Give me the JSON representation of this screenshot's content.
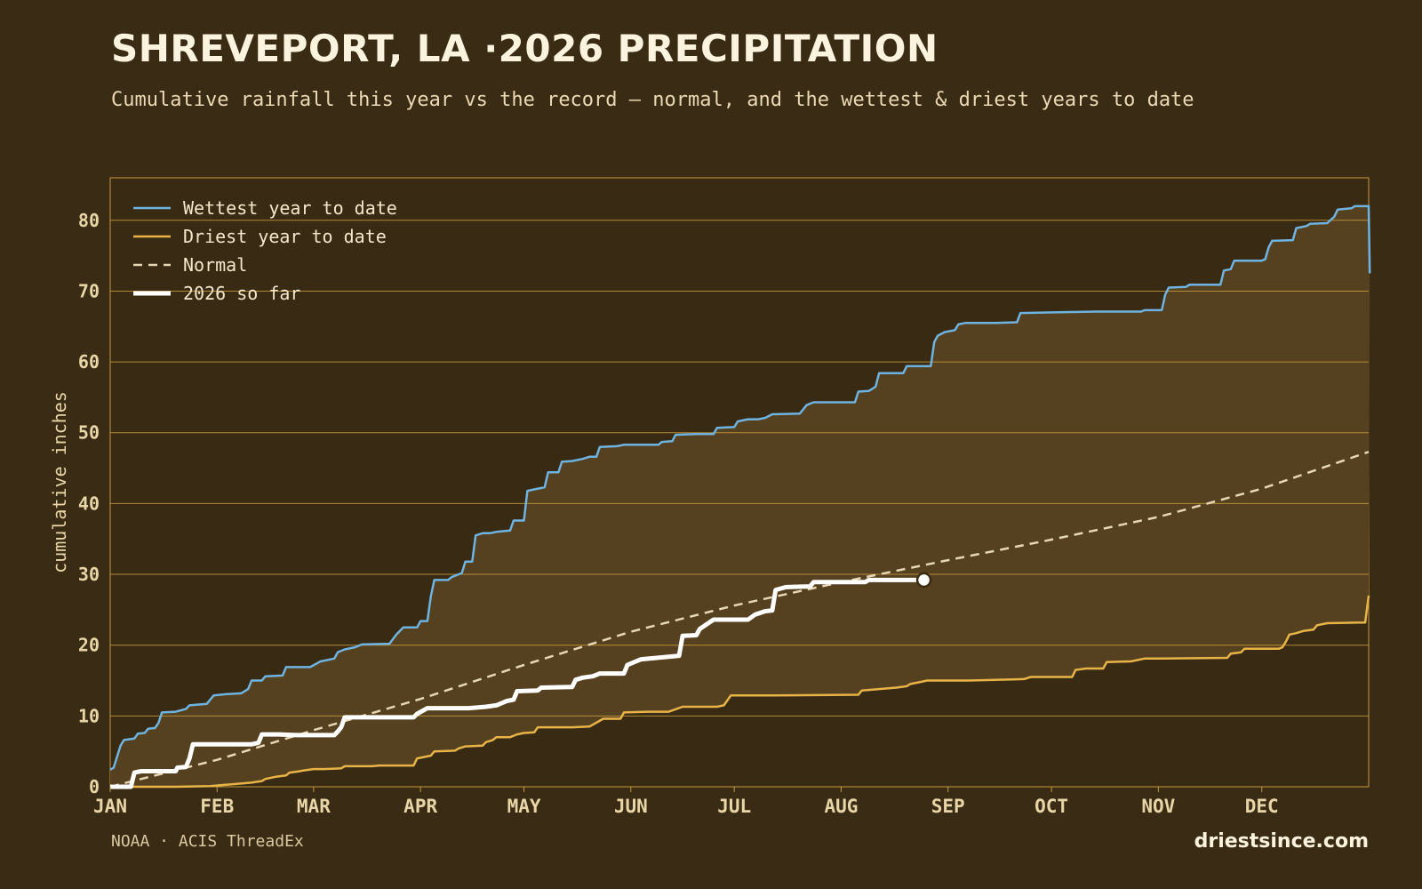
{
  "header": {
    "title": "SHREVEPORT, LA ·2026 PRECIPITATION",
    "subtitle": "Cumulative rainfall this year vs the record — normal, and the wettest & driest years to date"
  },
  "footer": {
    "source": "NOAA · ACIS ThreadEx",
    "brand": "driestsince.com"
  },
  "colors": {
    "background": "#3a2c14",
    "plot_background": "#382a13",
    "band_fill": "#55401f",
    "grid": "#c69a3e",
    "axis_text": "#e8d6a8",
    "wettest": "#6fb3e0",
    "driest": "#e8b448",
    "normal": "#e6d7b5",
    "current": "#ffffff"
  },
  "chart_data": {
    "type": "line",
    "title": "SHREVEPORT, LA ·2026 PRECIPITATION",
    "xlabel": "",
    "ylabel": "cumulative inches",
    "x_unit": "day of year",
    "xlim": [
      1,
      366
    ],
    "ylim": [
      0,
      86
    ],
    "yticks": [
      0,
      10,
      20,
      30,
      40,
      50,
      60,
      70,
      80
    ],
    "grid": true,
    "legend_position": "top-left",
    "month_ticks": [
      {
        "label": "JAN",
        "day": 1
      },
      {
        "label": "FEB",
        "day": 32
      },
      {
        "label": "MAR",
        "day": 60
      },
      {
        "label": "APR",
        "day": 91
      },
      {
        "label": "MAY",
        "day": 121
      },
      {
        "label": "JUN",
        "day": 152
      },
      {
        "label": "JUL",
        "day": 182
      },
      {
        "label": "AUG",
        "day": 213
      },
      {
        "label": "SEP",
        "day": 244
      },
      {
        "label": "OCT",
        "day": 274
      },
      {
        "label": "NOV",
        "day": 305
      },
      {
        "label": "DEC",
        "day": 335
      }
    ],
    "series": [
      {
        "name": "Wettest year to date",
        "color": "#6fb3e0",
        "style": "solid",
        "points": [
          [
            1,
            2.4
          ],
          [
            2,
            2.7
          ],
          [
            4,
            5.8
          ],
          [
            5,
            6.6
          ],
          [
            8,
            6.8
          ],
          [
            9,
            7.5
          ],
          [
            11,
            7.6
          ],
          [
            12,
            8.2
          ],
          [
            14,
            8.3
          ],
          [
            15,
            9
          ],
          [
            16,
            10.5
          ],
          [
            20,
            10.6
          ],
          [
            23,
            11
          ],
          [
            24,
            11.5
          ],
          [
            29,
            11.7
          ],
          [
            31,
            12.9
          ],
          [
            35,
            13.1
          ],
          [
            39,
            13.2
          ],
          [
            41,
            13.8
          ],
          [
            42,
            15
          ],
          [
            45,
            15
          ],
          [
            46,
            15.6
          ],
          [
            51,
            15.7
          ],
          [
            52,
            16.9
          ],
          [
            59,
            16.9
          ],
          [
            62,
            17.7
          ],
          [
            66,
            18.1
          ],
          [
            67,
            19
          ],
          [
            69,
            19.4
          ],
          [
            72,
            19.7
          ],
          [
            74,
            20.1
          ],
          [
            82,
            20.2
          ],
          [
            84,
            21.5
          ],
          [
            86,
            22.5
          ],
          [
            90,
            22.5
          ],
          [
            91,
            23.4
          ],
          [
            93,
            23.4
          ],
          [
            94,
            26.9
          ],
          [
            95,
            29.2
          ],
          [
            99,
            29.2
          ],
          [
            100,
            29.6
          ],
          [
            103,
            30.2
          ],
          [
            104,
            31.8
          ],
          [
            106,
            31.8
          ],
          [
            107,
            35.5
          ],
          [
            109,
            35.8
          ],
          [
            111,
            35.8
          ],
          [
            113,
            36
          ],
          [
            117,
            36.2
          ],
          [
            118,
            37.6
          ],
          [
            121,
            37.6
          ],
          [
            122,
            41.8
          ],
          [
            124,
            42
          ],
          [
            127,
            42.3
          ],
          [
            128,
            44.4
          ],
          [
            131,
            44.4
          ],
          [
            132,
            45.9
          ],
          [
            135,
            46
          ],
          [
            138,
            46.3
          ],
          [
            140,
            46.6
          ],
          [
            142,
            46.6
          ],
          [
            143,
            48
          ],
          [
            148,
            48.1
          ],
          [
            150,
            48.3
          ],
          [
            160,
            48.3
          ],
          [
            161,
            48.7
          ],
          [
            164,
            48.8
          ],
          [
            165,
            49.7
          ],
          [
            171,
            49.8
          ],
          [
            176,
            49.8
          ],
          [
            177,
            50.7
          ],
          [
            182,
            50.8
          ],
          [
            183,
            51.6
          ],
          [
            186,
            51.9
          ],
          [
            189,
            51.9
          ],
          [
            191,
            52.1
          ],
          [
            193,
            52.6
          ],
          [
            201,
            52.7
          ],
          [
            203,
            53.9
          ],
          [
            205,
            54.3
          ],
          [
            217,
            54.3
          ],
          [
            218,
            55.8
          ],
          [
            221,
            55.9
          ],
          [
            223,
            56.5
          ],
          [
            224,
            58.4
          ],
          [
            231,
            58.4
          ],
          [
            232,
            59.4
          ],
          [
            239,
            59.4
          ],
          [
            240,
            62.8
          ],
          [
            241,
            63.7
          ],
          [
            243,
            64.2
          ],
          [
            246,
            64.5
          ],
          [
            247,
            65.3
          ],
          [
            249,
            65.5
          ],
          [
            258,
            65.5
          ],
          [
            264,
            65.6
          ],
          [
            265,
            66.9
          ],
          [
            276,
            67
          ],
          [
            287,
            67.1
          ],
          [
            300,
            67.1
          ],
          [
            301,
            67.3
          ],
          [
            306,
            67.3
          ],
          [
            307,
            69.5
          ],
          [
            308,
            70.5
          ],
          [
            313,
            70.6
          ],
          [
            314,
            70.9
          ],
          [
            323,
            70.9
          ],
          [
            324,
            72.9
          ],
          [
            326,
            73.1
          ],
          [
            327,
            74.3
          ],
          [
            335,
            74.3
          ],
          [
            336,
            74.5
          ],
          [
            337,
            76.2
          ],
          [
            338,
            77.1
          ],
          [
            344,
            77.2
          ],
          [
            345,
            78.9
          ],
          [
            348,
            79.2
          ],
          [
            349,
            79.5
          ],
          [
            354,
            79.6
          ],
          [
            356,
            80.5
          ],
          [
            357,
            81.5
          ],
          [
            361,
            81.7
          ],
          [
            362,
            82
          ],
          [
            366,
            82
          ],
          [
            366.3,
            72.5
          ]
        ]
      },
      {
        "name": "Driest year to date",
        "color": "#e8b448",
        "style": "solid",
        "points": [
          [
            1,
            0
          ],
          [
            20,
            0
          ],
          [
            30,
            0.1
          ],
          [
            35,
            0.3
          ],
          [
            40,
            0.5
          ],
          [
            42,
            0.6
          ],
          [
            45,
            0.8
          ],
          [
            46,
            1.1
          ],
          [
            49,
            1.4
          ],
          [
            52,
            1.6
          ],
          [
            53,
            2
          ],
          [
            56,
            2.2
          ],
          [
            57,
            2.3
          ],
          [
            60,
            2.5
          ],
          [
            63,
            2.5
          ],
          [
            68,
            2.6
          ],
          [
            69,
            2.9
          ],
          [
            77,
            2.9
          ],
          [
            79,
            3
          ],
          [
            89,
            3
          ],
          [
            90,
            4
          ],
          [
            94,
            4.4
          ],
          [
            95,
            5
          ],
          [
            101,
            5.1
          ],
          [
            102,
            5.4
          ],
          [
            104,
            5.7
          ],
          [
            109,
            5.8
          ],
          [
            110,
            6.3
          ],
          [
            112,
            6.6
          ],
          [
            113,
            7
          ],
          [
            117,
            7
          ],
          [
            119,
            7.4
          ],
          [
            121,
            7.6
          ],
          [
            124,
            7.7
          ],
          [
            125,
            8.4
          ],
          [
            135,
            8.4
          ],
          [
            140,
            8.5
          ],
          [
            144,
            9.6
          ],
          [
            149,
            9.6
          ],
          [
            150,
            10.5
          ],
          [
            157,
            10.6
          ],
          [
            163,
            10.6
          ],
          [
            167,
            11.3
          ],
          [
            177,
            11.3
          ],
          [
            179,
            11.5
          ],
          [
            181,
            12.9
          ],
          [
            188,
            12.9
          ],
          [
            193,
            12.9
          ],
          [
            218,
            13
          ],
          [
            219,
            13.6
          ],
          [
            224,
            13.8
          ],
          [
            229,
            14
          ],
          [
            232,
            14.2
          ],
          [
            233,
            14.5
          ],
          [
            236,
            14.8
          ],
          [
            238,
            15
          ],
          [
            250,
            15
          ],
          [
            266,
            15.2
          ],
          [
            268,
            15.5
          ],
          [
            280,
            15.5
          ],
          [
            281,
            16.5
          ],
          [
            284,
            16.7
          ],
          [
            289,
            16.7
          ],
          [
            290,
            17.6
          ],
          [
            297,
            17.7
          ],
          [
            301,
            18.1
          ],
          [
            306,
            18.1
          ],
          [
            325,
            18.2
          ],
          [
            326,
            18.8
          ],
          [
            329,
            19
          ],
          [
            330,
            19.5
          ],
          [
            340,
            19.5
          ],
          [
            341,
            19.7
          ],
          [
            342,
            20.5
          ],
          [
            343,
            21.5
          ],
          [
            345,
            21.7
          ],
          [
            347,
            22
          ],
          [
            350,
            22.2
          ],
          [
            351,
            22.8
          ],
          [
            354,
            23.1
          ],
          [
            365,
            23.2
          ],
          [
            366,
            27
          ]
        ]
      },
      {
        "name": "Normal",
        "color": "#e6d7b5",
        "style": "dashed",
        "points": [
          [
            1,
            0
          ],
          [
            32,
            3.8
          ],
          [
            60,
            8
          ],
          [
            91,
            12.4
          ],
          [
            121,
            17.2
          ],
          [
            152,
            21.9
          ],
          [
            182,
            25.6
          ],
          [
            213,
            28.9
          ],
          [
            244,
            32
          ],
          [
            274,
            34.9
          ],
          [
            305,
            38.1
          ],
          [
            335,
            42.1
          ],
          [
            366,
            47.3
          ]
        ]
      },
      {
        "name": "2026 so far",
        "color": "#ffffff",
        "style": "bold",
        "points": [
          [
            1,
            0
          ],
          [
            7,
            0
          ],
          [
            8,
            2
          ],
          [
            10,
            2.2
          ],
          [
            12,
            2.2
          ],
          [
            20,
            2.2
          ],
          [
            20.5,
            2.7
          ],
          [
            23,
            2.8
          ],
          [
            24,
            4
          ],
          [
            25,
            6
          ],
          [
            32,
            6
          ],
          [
            42,
            6
          ],
          [
            44,
            6.2
          ],
          [
            45,
            7.4
          ],
          [
            50,
            7.4
          ],
          [
            55,
            7.3
          ],
          [
            66,
            7.3
          ],
          [
            67,
            7.8
          ],
          [
            68,
            8.4
          ],
          [
            69,
            9.8
          ],
          [
            89,
            9.8
          ],
          [
            90,
            10.3
          ],
          [
            93,
            11.1
          ],
          [
            105,
            11.1
          ],
          [
            110,
            11.3
          ],
          [
            113,
            11.5
          ],
          [
            116,
            12.1
          ],
          [
            118,
            12.3
          ],
          [
            119,
            13.5
          ],
          [
            125,
            13.6
          ],
          [
            126,
            14
          ],
          [
            135,
            14.1
          ],
          [
            136,
            15.1
          ],
          [
            138,
            15.4
          ],
          [
            141,
            15.6
          ],
          [
            143,
            16
          ],
          [
            150,
            16
          ],
          [
            151,
            17.2
          ],
          [
            155,
            18
          ],
          [
            166,
            18.5
          ],
          [
            167,
            21.3
          ],
          [
            171,
            21.4
          ],
          [
            172,
            22.3
          ],
          [
            176,
            23.6
          ],
          [
            186,
            23.6
          ],
          [
            188,
            24.3
          ],
          [
            191,
            24.8
          ],
          [
            193,
            24.9
          ],
          [
            194,
            27.8
          ],
          [
            197,
            28.2
          ],
          [
            204,
            28.3
          ],
          [
            205,
            28.9
          ],
          [
            220,
            28.9
          ],
          [
            221,
            29.2
          ],
          [
            237,
            29.2
          ]
        ]
      }
    ],
    "current_marker": {
      "day": 237,
      "value": 29.2
    }
  }
}
